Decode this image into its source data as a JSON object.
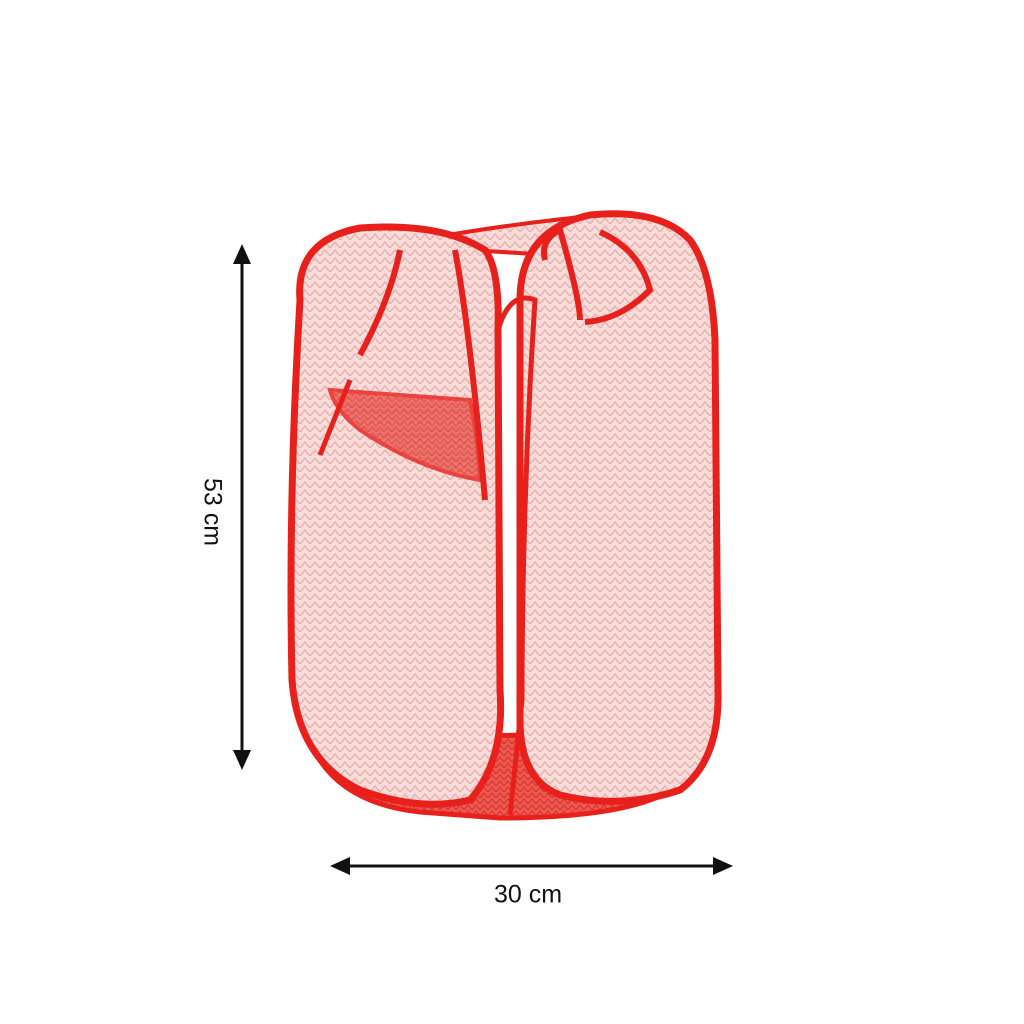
{
  "product": {
    "name_icon": "laundry-hamper-image",
    "color": "#e8201c",
    "mesh_color": "#f6d9d7"
  },
  "dimensions": {
    "height_label": "53 cm",
    "width_label": "30 cm",
    "arrow_color": "#111111"
  }
}
